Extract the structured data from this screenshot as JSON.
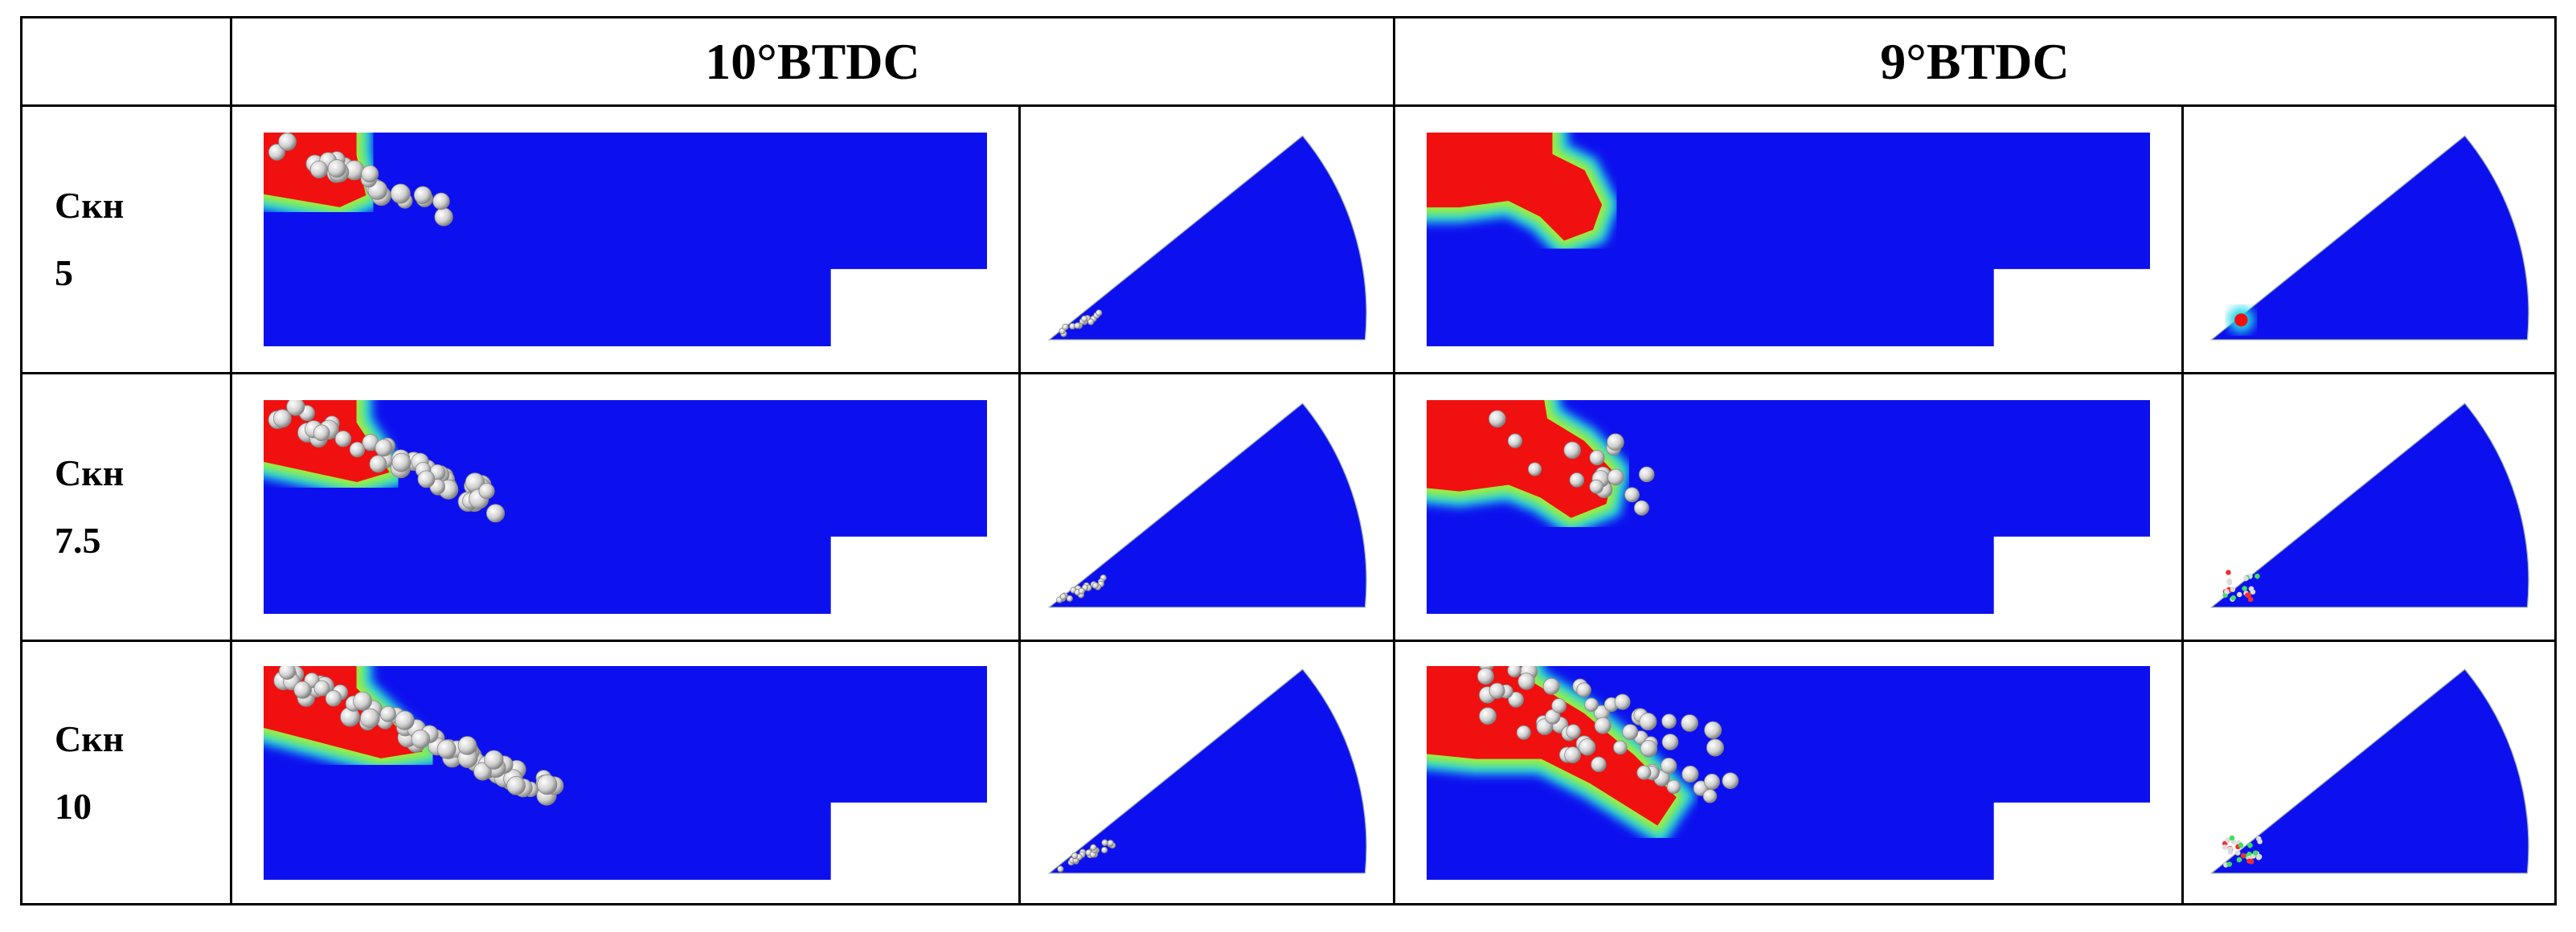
{
  "table": {
    "header": {
      "left": "10°BTDC",
      "right": "9°BTDC"
    },
    "rows": [
      {
        "label": "Скн",
        "value": 5
      },
      {
        "label": "Скн",
        "value": 7.5
      },
      {
        "label": "Скн",
        "value": 10
      }
    ]
  }
}
